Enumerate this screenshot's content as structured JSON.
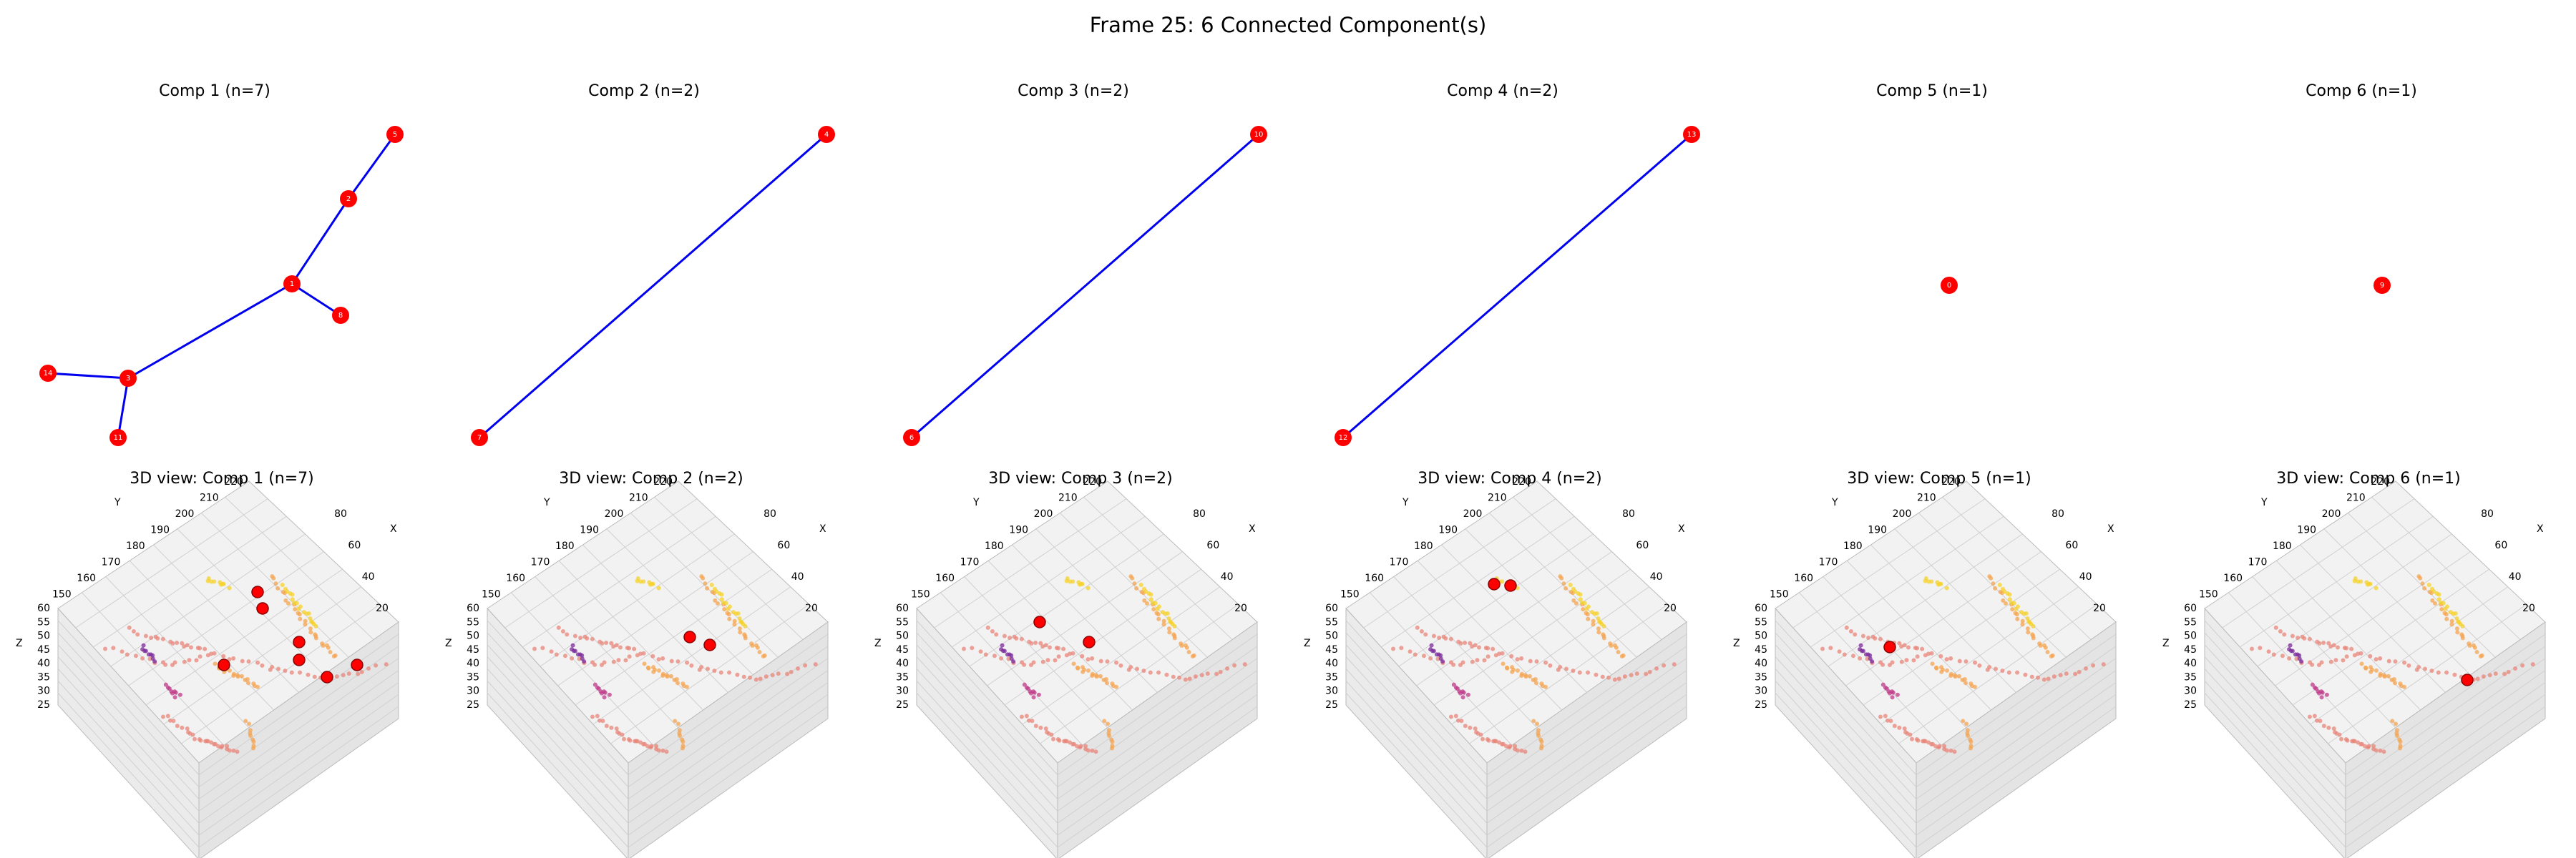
{
  "title": "Frame 25: 6 Connected Component(s)",
  "components": [
    {
      "title": "Comp 1 (n=7)",
      "nodes": [
        "5",
        "2",
        "1",
        "8",
        "14",
        "3",
        "11"
      ],
      "edges": [
        [
          0,
          1
        ],
        [
          1,
          2
        ],
        [
          2,
          3
        ],
        [
          2,
          5
        ],
        [
          5,
          4
        ],
        [
          5,
          6
        ]
      ],
      "view_title": "3D view: Comp 1 (n=7)"
    },
    {
      "title": "Comp 2 (n=2)",
      "nodes": [
        "4",
        "7"
      ],
      "edges": [
        [
          0,
          1
        ]
      ],
      "view_title": "3D view: Comp 2 (n=2)"
    },
    {
      "title": "Comp 3 (n=2)",
      "nodes": [
        "10",
        "6"
      ],
      "edges": [
        [
          0,
          1
        ]
      ],
      "view_title": "3D view: Comp 3 (n=2)"
    },
    {
      "title": "Comp 4 (n=2)",
      "nodes": [
        "13",
        "12"
      ],
      "edges": [
        [
          0,
          1
        ]
      ],
      "view_title": "3D view: Comp 4 (n=2)"
    },
    {
      "title": "Comp 5 (n=1)",
      "nodes": [
        "0"
      ],
      "edges": [],
      "view_title": "3D view: Comp 5 (n=1)"
    },
    {
      "title": "Comp 6 (n=1)",
      "nodes": [
        "9"
      ],
      "edges": [],
      "view_title": "3D view: Comp 6 (n=1)"
    }
  ],
  "axes3d": {
    "x_label": "X",
    "y_label": "Y",
    "z_label": "Z",
    "xticks": [
      20,
      40,
      60,
      80
    ],
    "yticks": [
      150,
      160,
      170,
      180,
      190,
      200,
      210,
      220
    ],
    "zticks": [
      25,
      30,
      35,
      40,
      45,
      50,
      55,
      60
    ]
  }
}
